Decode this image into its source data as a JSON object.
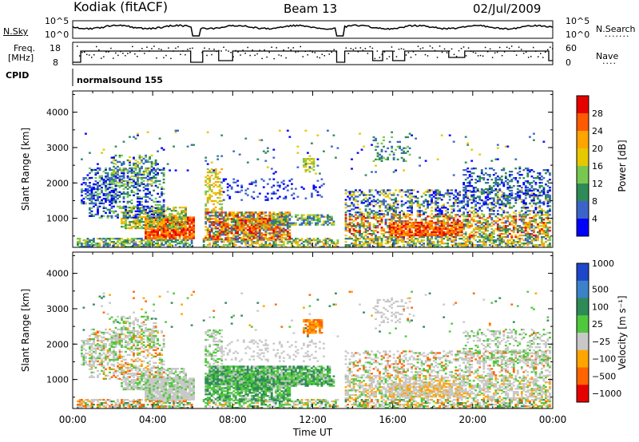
{
  "header": {
    "station": "Kodiak (fitACF)",
    "beam": "Beam 13",
    "date": "02/Jul/2009"
  },
  "status_panels": {
    "nsky": {
      "label": "N.Sky",
      "ticks": [
        "10^5",
        "10^0"
      ]
    },
    "nsearch": {
      "label": "N.Search",
      "ticks": [
        "10^5",
        "10^0"
      ]
    },
    "freq": {
      "label_line1": "Freq.",
      "label_line2": "[MHz]",
      "ticks": [
        "18",
        "8"
      ]
    },
    "nave": {
      "label": "Nave",
      "ticks": [
        "60",
        "0"
      ]
    },
    "cpid": {
      "label": "CPID",
      "value": "normalsound 155"
    }
  },
  "chart_data": [
    {
      "type": "heatmap",
      "quantity": "Power",
      "colorbar_label": "Power [dB]",
      "colorbar_ticks": [
        "28",
        "24",
        "20",
        "16",
        "12",
        "8",
        "4"
      ],
      "colors": [
        "#e60000",
        "#ff5a00",
        "#ffa500",
        "#e6c800",
        "#78c850",
        "#2e8b57",
        "#3c64c8",
        "#0000ff"
      ],
      "ylabel": "Slant Range [km]",
      "y_ticks": [
        "4000",
        "3000",
        "2000",
        "1000"
      ],
      "ylim": [
        180,
        4600
      ]
    },
    {
      "type": "heatmap",
      "quantity": "Velocity",
      "colorbar_label": "Velocity [m s⁻¹]",
      "colorbar_ticks": [
        "1000",
        "500",
        "100",
        "25",
        "−25",
        "−100",
        "−500",
        "−1000"
      ],
      "colors": [
        "#1e46c8",
        "#3c82c8",
        "#2e8b57",
        "#50c83c",
        "#c8c8c8",
        "#ffa500",
        "#ff6400",
        "#e60000"
      ],
      "ylabel": "Slant Range [km]",
      "y_ticks": [
        "4000",
        "3000",
        "2000",
        "1000"
      ],
      "ylim": [
        180,
        4600
      ]
    }
  ],
  "xaxis": {
    "label": "Time UT",
    "ticks": [
      "00:00",
      "04:00",
      "08:00",
      "12:00",
      "16:00",
      "20:00",
      "00:00"
    ],
    "xlim_hours": [
      0,
      24
    ]
  }
}
